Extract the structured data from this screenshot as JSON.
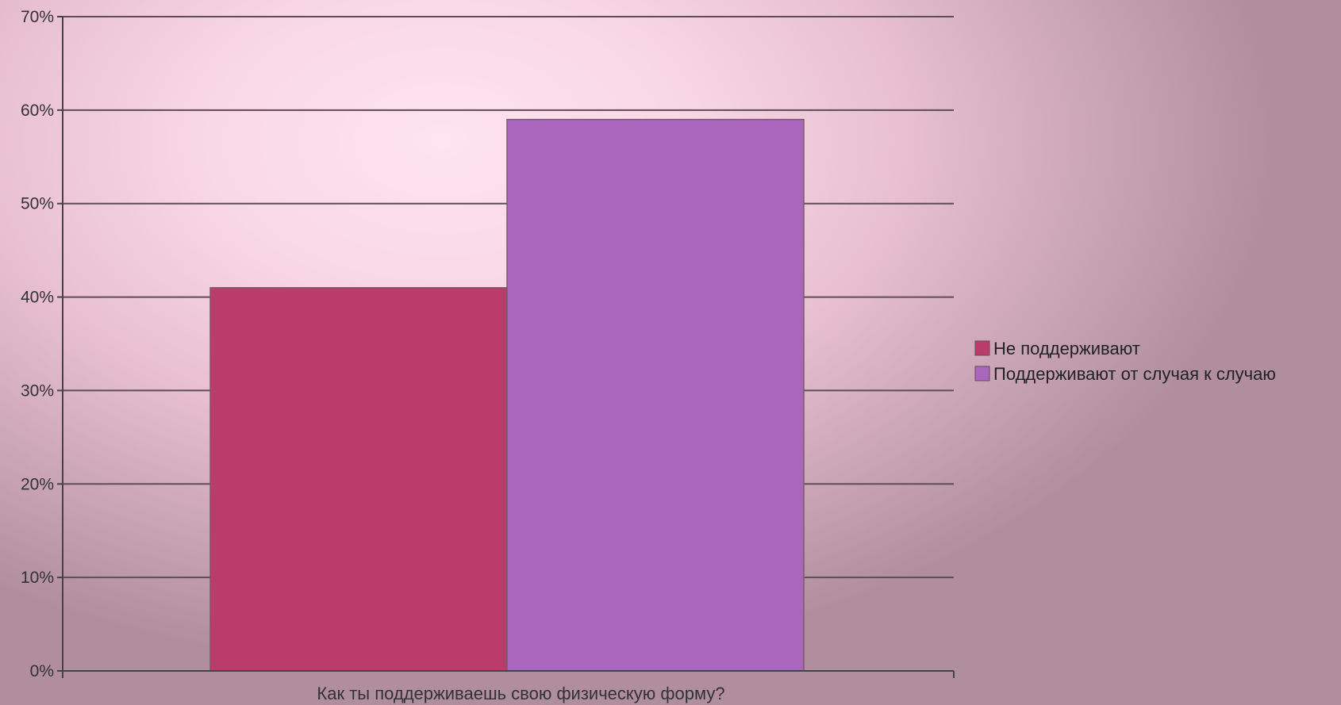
{
  "chart_data": {
    "type": "bar",
    "categories": [
      "Как ты поддерживаешь свою физическую форму?"
    ],
    "series": [
      {
        "name": "Не поддерживают",
        "values": [
          41
        ],
        "color": "#bb3c68"
      },
      {
        "name": "Поддерживают от случая к случаю",
        "values": [
          59
        ],
        "color": "#aa66bd"
      }
    ],
    "y_ticks": [
      "0%",
      "10%",
      "20%",
      "30%",
      "40%",
      "50%",
      "60%",
      "70%"
    ],
    "ylim": [
      0,
      70
    ],
    "grid": true,
    "legend_position": "right"
  }
}
